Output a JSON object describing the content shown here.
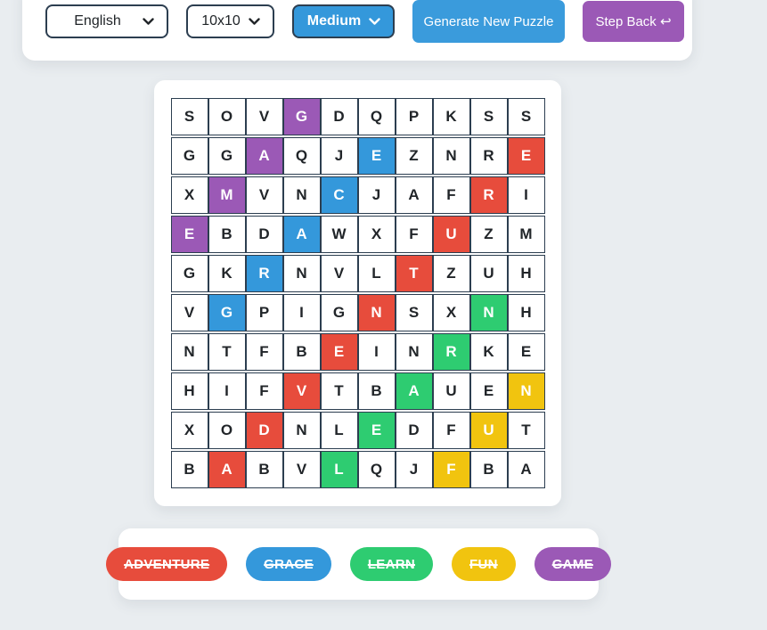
{
  "colors": {
    "red": "#e74c3c",
    "blue": "#3498db",
    "green": "#2ecc71",
    "yellow": "#f1c40f",
    "purple": "#9b59b6",
    "generate_button_blue": "#3a9bdc",
    "dark_border": "#2c3e50",
    "page_background": "#e9edf0"
  },
  "toolbar": {
    "language_select_value": "English",
    "grid_size_select_value": "10x10",
    "difficulty_select_value": "Medium",
    "generate_button_label": "Generate New Puzzle",
    "step_back_button_label": "Step Back",
    "step_back_icon": "↩"
  },
  "grid": {
    "rows": 10,
    "cols": 10,
    "letters": [
      "SOVGDQPKSS",
      "GGAQJEZNRE",
      "XMVNCJAFRI",
      "EBDAWXFUZM",
      "GKRNVLTZUH",
      "VGPIGNSXNH",
      "NTFBEINRKE",
      "HIFVTBAUEN",
      "XODNLEDFUT",
      "BABVLQJFBA"
    ],
    "placements": [
      {
        "word": "GAME",
        "color": "purple",
        "cells": [
          [
            0,
            3
          ],
          [
            1,
            2
          ],
          [
            2,
            1
          ],
          [
            3,
            0
          ]
        ]
      },
      {
        "word": "GRACE",
        "color": "blue",
        "cells": [
          [
            5,
            1
          ],
          [
            4,
            2
          ],
          [
            3,
            3
          ],
          [
            2,
            4
          ],
          [
            1,
            5
          ]
        ]
      },
      {
        "word": "ADVENTURE",
        "color": "red",
        "cells": [
          [
            9,
            1
          ],
          [
            8,
            2
          ],
          [
            7,
            3
          ],
          [
            6,
            4
          ],
          [
            5,
            5
          ],
          [
            4,
            6
          ],
          [
            3,
            7
          ],
          [
            2,
            8
          ],
          [
            1,
            9
          ]
        ]
      },
      {
        "word": "LEARN",
        "color": "green",
        "cells": [
          [
            9,
            4
          ],
          [
            8,
            5
          ],
          [
            7,
            6
          ],
          [
            6,
            7
          ],
          [
            5,
            8
          ]
        ]
      },
      {
        "word": "FUN",
        "color": "yellow",
        "cells": [
          [
            9,
            7
          ],
          [
            8,
            8
          ],
          [
            7,
            9
          ]
        ]
      }
    ]
  },
  "words": [
    {
      "label": "ADVENTURE",
      "color": "red",
      "found": true
    },
    {
      "label": "GRACE",
      "color": "blue",
      "found": true
    },
    {
      "label": "LEARN",
      "color": "green",
      "found": true
    },
    {
      "label": "FUN",
      "color": "yellow",
      "found": true
    },
    {
      "label": "GAME",
      "color": "purple",
      "found": true
    }
  ]
}
